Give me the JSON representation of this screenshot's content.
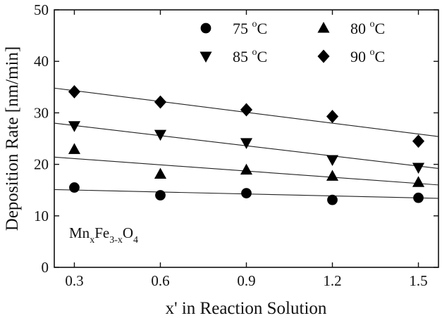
{
  "chart_data": {
    "type": "scatter",
    "title": "",
    "xlabel": "x' in Reaction Solution",
    "ylabel": "Deposition Rate [nm/min]",
    "xlim": [
      0.23,
      1.57
    ],
    "ylim": [
      0,
      50
    ],
    "x_ticks": [
      0.3,
      0.6,
      0.9,
      1.2,
      1.5
    ],
    "x_tick_labels": [
      "0.3",
      "0.6",
      "0.9",
      "1.2",
      "1.5"
    ],
    "y_ticks": [
      0,
      10,
      20,
      30,
      40,
      50
    ],
    "y_tick_labels": [
      "0",
      "10",
      "20",
      "30",
      "40",
      "50"
    ],
    "grid": false,
    "legend_position": "top-right",
    "x": [
      0.3,
      0.6,
      0.9,
      1.2,
      1.5
    ],
    "series": [
      {
        "name": "75 °C",
        "temp": "75",
        "unit": "C",
        "degree": "o",
        "marker": "circle",
        "values": [
          15.5,
          14.0,
          14.4,
          13.1,
          13.5
        ],
        "fit": [
          15.1,
          13.4
        ]
      },
      {
        "name": "80 °C",
        "temp": "80",
        "unit": "C",
        "degree": "o",
        "marker": "triangle-up",
        "values": [
          22.9,
          18.1,
          18.9,
          17.7,
          16.5
        ],
        "fit": [
          21.4,
          16.0
        ]
      },
      {
        "name": "85 °C",
        "temp": "85",
        "unit": "C",
        "degree": "o",
        "marker": "triangle-down",
        "values": [
          27.5,
          25.8,
          24.2,
          20.9,
          19.4
        ],
        "fit": [
          28.0,
          19.2
        ]
      },
      {
        "name": "90 °C",
        "temp": "90",
        "unit": "C",
        "degree": "o",
        "marker": "diamond",
        "values": [
          34.1,
          32.1,
          30.6,
          29.3,
          24.5
        ],
        "fit": [
          34.8,
          25.4
        ]
      }
    ],
    "annotation": {
      "main1": "Mn",
      "sub1": "x",
      "main2": "Fe",
      "sub2": "3-x",
      "main3": "O",
      "sub3": "4"
    }
  }
}
